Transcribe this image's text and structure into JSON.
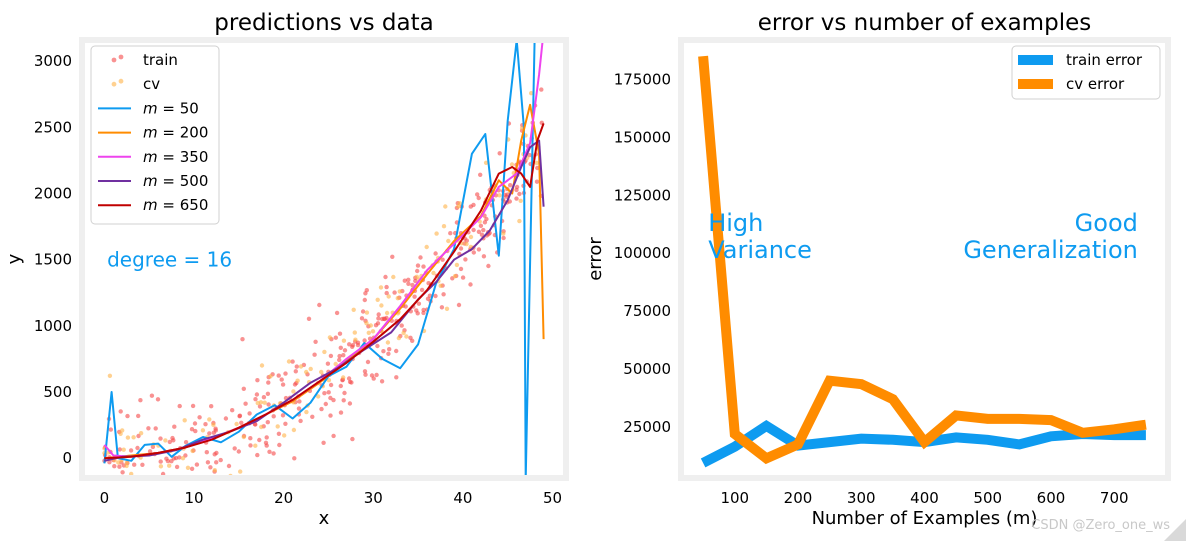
{
  "watermark": "CSDN @Zero_one_ws",
  "chart_data": [
    {
      "type": "scatter",
      "title": "predictions vs data",
      "xlabel": "x",
      "ylabel": "y",
      "xlim": [
        -2.5,
        51.5
      ],
      "ylim": [
        -150,
        3160
      ],
      "xticks": [
        0,
        10,
        20,
        30,
        40,
        50
      ],
      "yticks": [
        0,
        500,
        1000,
        1500,
        2000,
        2500,
        3000
      ],
      "annotation": "degree = 16",
      "grid": false,
      "legend_position": "top-left",
      "scatter_series": [
        {
          "name": "train",
          "color": "#f54a4a",
          "trend": [
            0.05,
            200,
            1.5
          ],
          "n": 420,
          "seed": 7
        },
        {
          "name": "cv",
          "color": "#ffb347",
          "trend": [
            0.05,
            200,
            1.5
          ],
          "n": 150,
          "seed": 13
        }
      ],
      "series": [
        {
          "name": "$m = 50$",
          "color": "#0e9bf0",
          "x": [
            0,
            0.8,
            1.5,
            3,
            4.5,
            6,
            7.5,
            9,
            11,
            13,
            15,
            17,
            19,
            21,
            23,
            25,
            27,
            29,
            31,
            33,
            35,
            37,
            39,
            41,
            42.5,
            44,
            45,
            46,
            46.8,
            47,
            48
          ],
          "y": [
            -40,
            500,
            0,
            -20,
            100,
            110,
            10,
            90,
            160,
            120,
            200,
            330,
            400,
            300,
            420,
            620,
            690,
            870,
            750,
            680,
            860,
            1320,
            1580,
            2300,
            2450,
            1530,
            2550,
            3160,
            2500,
            -160,
            3160
          ]
        },
        {
          "name": "$m = 200$",
          "color": "#ff8c00",
          "x": [
            0,
            3,
            6,
            9,
            12,
            15,
            18,
            21,
            24,
            27,
            30,
            33,
            36,
            39,
            42,
            44,
            45.5,
            46.5,
            47.5,
            48.5,
            49
          ],
          "y": [
            0,
            20,
            40,
            80,
            150,
            230,
            330,
            430,
            570,
            740,
            900,
            1130,
            1390,
            1640,
            1830,
            2100,
            2000,
            2400,
            2670,
            2300,
            900
          ]
        },
        {
          "name": "$m = 350$",
          "color": "#ee44ee",
          "x": [
            0,
            1,
            3,
            6,
            9,
            12,
            15,
            18,
            21,
            24,
            27,
            30,
            33,
            36,
            39,
            42,
            44,
            46,
            47.5,
            48.5,
            48.9
          ],
          "y": [
            100,
            20,
            10,
            40,
            80,
            150,
            230,
            330,
            440,
            580,
            750,
            900,
            1150,
            1420,
            1620,
            1820,
            2050,
            2150,
            2380,
            2900,
            3160
          ]
        },
        {
          "name": "$m = 500$",
          "color": "#7030a0",
          "x": [
            0,
            2,
            5,
            8,
            11,
            14,
            17,
            20,
            23,
            26,
            29,
            32,
            35,
            37,
            39,
            41,
            43,
            45,
            46.5,
            47.5,
            48.5,
            49
          ],
          "y": [
            -20,
            10,
            20,
            60,
            140,
            200,
            280,
            420,
            570,
            680,
            820,
            950,
            1200,
            1330,
            1500,
            1580,
            1720,
            1950,
            2200,
            2350,
            2400,
            1900
          ]
        },
        {
          "name": "$m = 650$",
          "color": "#c00000",
          "x": [
            0,
            3,
            6,
            9,
            12,
            15,
            18,
            21,
            24,
            27,
            30,
            33,
            36,
            39,
            42,
            44,
            45.5,
            46.5,
            47.5,
            48.3,
            49
          ],
          "y": [
            0,
            10,
            40,
            80,
            140,
            230,
            330,
            440,
            580,
            720,
            880,
            1050,
            1270,
            1560,
            1870,
            2150,
            2200,
            2150,
            2050,
            2400,
            2530
          ]
        }
      ]
    },
    {
      "type": "line",
      "title": "error vs number of examples",
      "xlabel": "Number of Examples (m)",
      "ylabel": "error",
      "xlim": [
        15,
        785
      ],
      "ylim": [
        3000,
        192000
      ],
      "xticks": [
        100,
        200,
        300,
        400,
        500,
        600,
        700
      ],
      "yticks": [
        25000,
        50000,
        75000,
        100000,
        125000,
        150000,
        175000
      ],
      "grid": false,
      "legend_position": "top-right",
      "annotations": [
        {
          "text": "High\nVariance",
          "x": 58,
          "y": 100000,
          "align": "left",
          "color": "#0e9bf0"
        },
        {
          "text": "Good\nGeneralization",
          "x": 750,
          "y": 100000,
          "align": "right",
          "color": "#0e9bf0"
        }
      ],
      "x": [
        50,
        100,
        150,
        200,
        250,
        300,
        350,
        400,
        450,
        500,
        550,
        600,
        650,
        700,
        750
      ],
      "series": [
        {
          "name": "train error",
          "color": "#0e9bf0",
          "values": [
            9500,
            16500,
            25500,
            17000,
            18500,
            20000,
            19500,
            18500,
            20500,
            19500,
            17500,
            21000,
            22000,
            21500,
            21500
          ]
        },
        {
          "name": "cv error",
          "color": "#ff8c00",
          "values": [
            185000,
            22000,
            11500,
            17500,
            45000,
            43500,
            37000,
            18500,
            30000,
            28500,
            28500,
            28000,
            22500,
            24000,
            26000
          ]
        }
      ]
    }
  ]
}
